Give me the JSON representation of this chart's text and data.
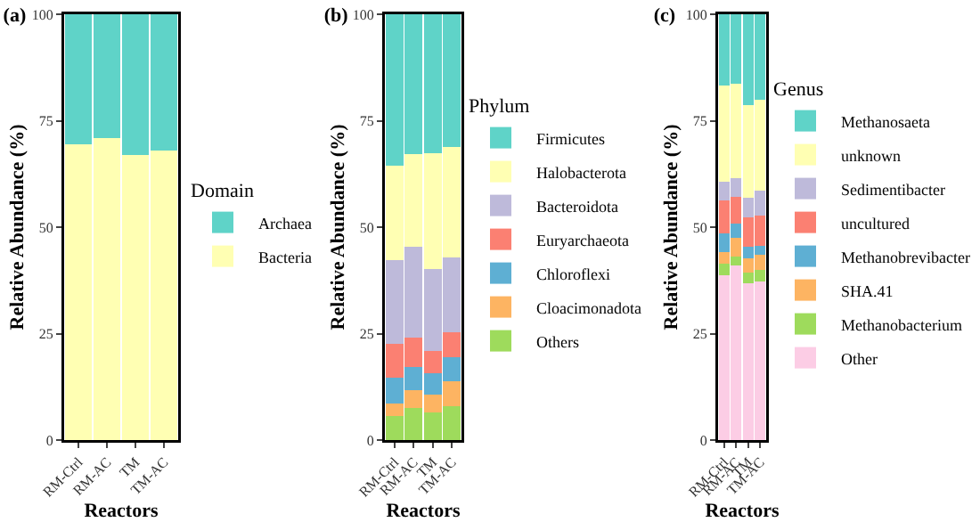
{
  "chart_data": [
    {
      "type": "bar",
      "title": "(a)",
      "xlabel": "Reactors",
      "ylabel": "Relative Abundance (%)",
      "legend_title": "Domain",
      "stacked": true,
      "categories": [
        "RM-Ctrl",
        "RM-AC",
        "TM",
        "TM-AC"
      ],
      "ylim": [
        0,
        100
      ],
      "yticks": [
        0,
        25,
        50,
        75,
        100
      ],
      "grid": false,
      "legend": "right",
      "series": [
        {
          "name": "Bacteria",
          "color": "#ffffb3",
          "values": [
            69.5,
            71,
            67,
            68
          ]
        },
        {
          "name": "Archaea",
          "color": "#5fd3c8",
          "values": [
            30.5,
            29,
            33,
            32
          ]
        }
      ]
    },
    {
      "type": "bar",
      "title": "(b)",
      "xlabel": "Reactors",
      "ylabel": "Relative Abundance (%)",
      "legend_title": "Phylum",
      "stacked": true,
      "categories": [
        "RM-Ctrl",
        "RM-AC",
        "TM",
        "TM-AC"
      ],
      "ylim": [
        0,
        100
      ],
      "yticks": [
        0,
        25,
        50,
        75,
        100
      ],
      "grid": false,
      "legend": "right",
      "series": [
        {
          "name": "Others",
          "color": "#9edb5c",
          "values": [
            5.6,
            7.5,
            6.4,
            7.9
          ]
        },
        {
          "name": "Cloacimonadota",
          "color": "#fdb462",
          "values": [
            3.0,
            4.2,
            4.2,
            6.0
          ]
        },
        {
          "name": "Chloroflexi",
          "color": "#5eafd3",
          "values": [
            6.0,
            5.4,
            5.0,
            5.6
          ]
        },
        {
          "name": "Euryarchaeota",
          "color": "#fb8072",
          "values": [
            8.0,
            7.0,
            5.4,
            5.8
          ]
        },
        {
          "name": "Bacteroidota",
          "color": "#bebada",
          "values": [
            19.6,
            21.3,
            19.1,
            17.5
          ]
        },
        {
          "name": "Halobacterota",
          "color": "#ffffb3",
          "values": [
            22.3,
            21.7,
            27.3,
            26.1
          ]
        },
        {
          "name": "Firmicutes",
          "color": "#5fd3c8",
          "values": [
            35.5,
            32.9,
            32.6,
            31.1
          ]
        }
      ]
    },
    {
      "type": "bar",
      "title": "(c)",
      "xlabel": "Reactors",
      "ylabel": "Relative Abundance (%)",
      "legend_title": "Genus",
      "stacked": true,
      "categories": [
        "RM-Ctrl",
        "RM-AC",
        "TM",
        "TM-AC"
      ],
      "ylim": [
        0,
        100
      ],
      "yticks": [
        0,
        25,
        50,
        75,
        100
      ],
      "grid": false,
      "legend": "right",
      "series": [
        {
          "name": "Other",
          "color": "#fccde5",
          "values": [
            38.7,
            41.0,
            36.9,
            37.3
          ]
        },
        {
          "name": "Methanobacterium",
          "color": "#9edb5c",
          "values": [
            2.8,
            2.2,
            2.5,
            2.6
          ]
        },
        {
          "name": "SHA.41",
          "color": "#fdb462",
          "values": [
            2.7,
            4.2,
            3.3,
            3.7
          ]
        },
        {
          "name": "Methanobrevibacter",
          "color": "#5eafd3",
          "values": [
            4.3,
            3.5,
            2.6,
            2.1
          ]
        },
        {
          "name": "uncultured",
          "color": "#fb8072",
          "values": [
            7.7,
            6.2,
            7.0,
            7.0
          ]
        },
        {
          "name": "Sedimentibacter",
          "color": "#bebada",
          "values": [
            4.4,
            4.4,
            4.6,
            5.8
          ]
        },
        {
          "name": "unknown",
          "color": "#ffffb3",
          "values": [
            22.6,
            22.1,
            21.8,
            21.5
          ]
        },
        {
          "name": "Methanosaeta",
          "color": "#5fd3c8",
          "values": [
            16.8,
            16.4,
            21.3,
            20.0
          ]
        }
      ]
    }
  ]
}
